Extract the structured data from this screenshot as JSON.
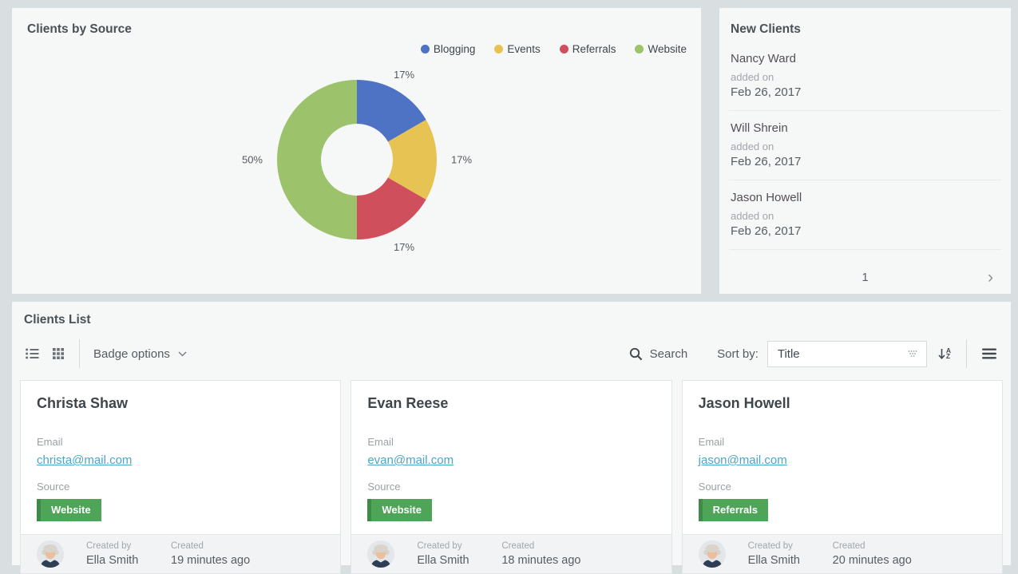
{
  "theme": {
    "page_bg": "#d9dee1",
    "panel_bg": "#f6f7f7",
    "link_color": "#4aa6c7",
    "badge_color": "#4ea558",
    "badge_border_color": "#3e8a49"
  },
  "chart_data": {
    "type": "pie",
    "donut": true,
    "title": "Clients by Source",
    "labels": [
      "Blogging",
      "Events",
      "Referrals",
      "Website"
    ],
    "values": [
      1,
      1,
      1,
      3
    ],
    "percent_labels": [
      "17%",
      "17%",
      "17%",
      "50%"
    ],
    "colors": [
      "#4e72c4",
      "#e7c353",
      "#d04f5c",
      "#9cc36b"
    ],
    "legend_position": "top-right",
    "start_angle_deg": 0,
    "direction": "clockwise"
  },
  "clients_by_source": {
    "title": "Clients by Source"
  },
  "new_clients": {
    "title": "New Clients",
    "items": [
      {
        "name": "Nancy Ward",
        "added_label": "added on",
        "date": "Feb 26, 2017"
      },
      {
        "name": "Will Shrein",
        "added_label": "added on",
        "date": "Feb 26, 2017"
      },
      {
        "name": "Jason Howell",
        "added_label": "added on",
        "date": "Feb 26, 2017"
      }
    ],
    "pagination": {
      "current_page": "1",
      "next": "›"
    }
  },
  "clients_list": {
    "title": "Clients List",
    "toolbar": {
      "badge_options_label": "Badge options",
      "search_label": "Search",
      "sort_by_label": "Sort by:",
      "sort_value": "Title"
    },
    "cards": [
      {
        "name": "Christa Shaw",
        "email_label": "Email",
        "email": "christa@mail.com",
        "source_label": "Source",
        "source": "Website",
        "created_by_label": "Created by",
        "created_by": "Ella Smith",
        "created_label": "Created",
        "created": "19 minutes ago"
      },
      {
        "name": "Evan Reese",
        "email_label": "Email",
        "email": "evan@mail.com",
        "source_label": "Source",
        "source": "Website",
        "created_by_label": "Created by",
        "created_by": "Ella Smith",
        "created_label": "Created",
        "created": "18 minutes ago"
      },
      {
        "name": "Jason Howell",
        "email_label": "Email",
        "email": "jason@mail.com",
        "source_label": "Source",
        "source": "Referrals",
        "created_by_label": "Created by",
        "created_by": "Ella Smith",
        "created_label": "Created",
        "created": "20 minutes ago"
      }
    ]
  }
}
